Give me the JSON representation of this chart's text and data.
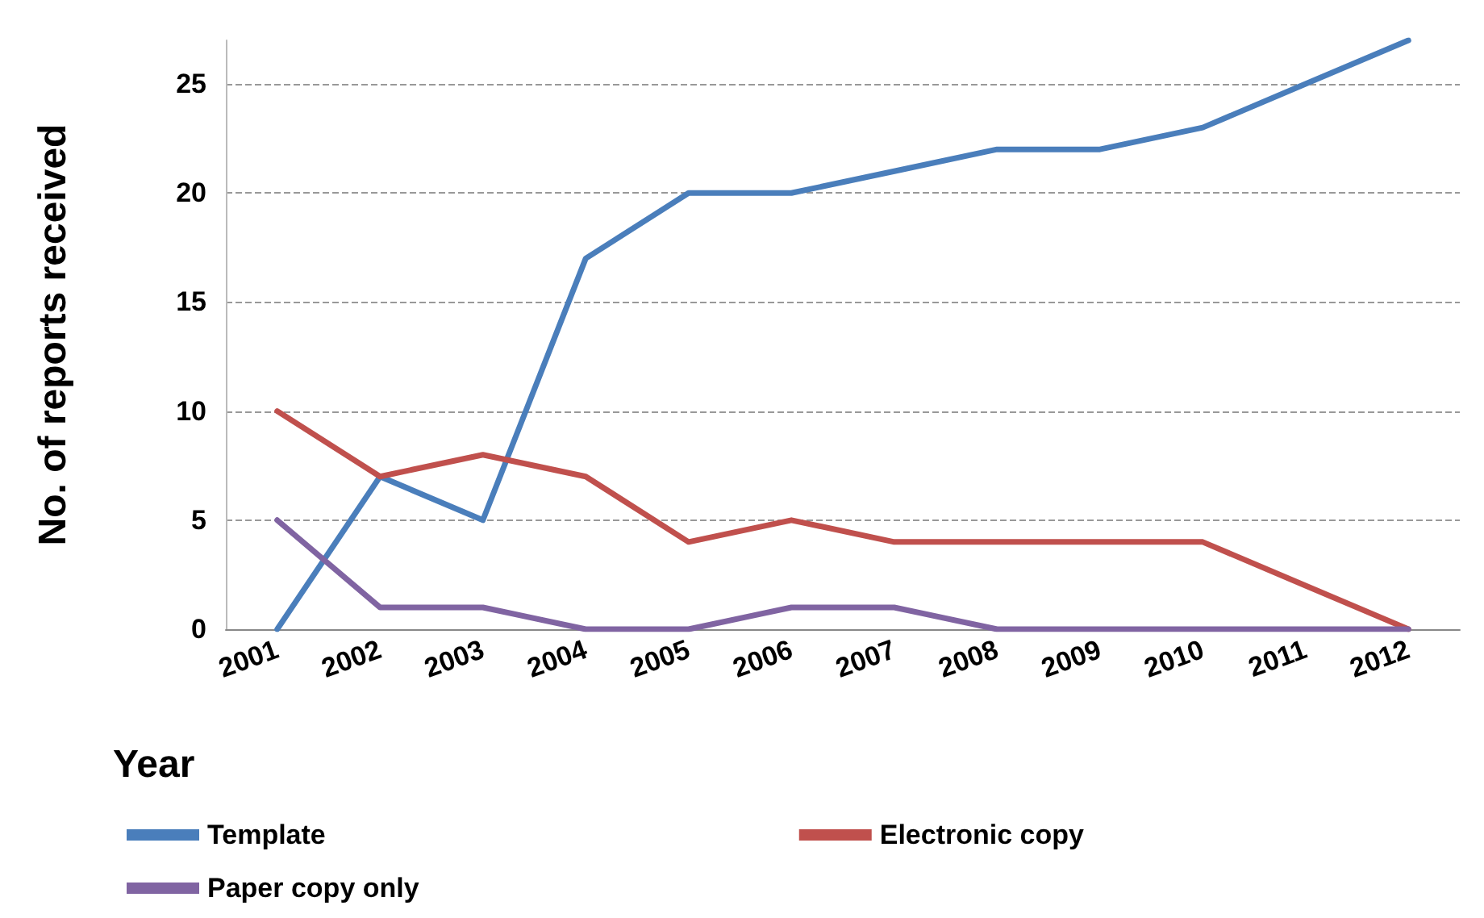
{
  "chart_data": {
    "type": "line",
    "xlabel": "Year",
    "ylabel": "No. of reports received",
    "categories": [
      "2001",
      "2002",
      "2003",
      "2004",
      "2005",
      "2006",
      "2007",
      "2008",
      "2009",
      "2010",
      "2011",
      "2012"
    ],
    "series": [
      {
        "name": "Template",
        "color": "#4a7ebb",
        "values": [
          0,
          7,
          5,
          17,
          20,
          20,
          21,
          22,
          22,
          23,
          25,
          27
        ]
      },
      {
        "name": "Electronic copy",
        "color": "#c0504d",
        "values": [
          10,
          7,
          8,
          7,
          4,
          5,
          4,
          4,
          4,
          4,
          2,
          0
        ]
      },
      {
        "name": "Paper copy only",
        "color": "#8064a2",
        "values": [
          5,
          1,
          1,
          0,
          0,
          1,
          1,
          0,
          0,
          0,
          0,
          0
        ]
      }
    ],
    "ylim": [
      0,
      27
    ],
    "yticks": [
      0,
      5,
      10,
      15,
      20,
      25
    ],
    "grid": "y",
    "legend": "bottom",
    "marker": "none",
    "line_style": "solid"
  }
}
